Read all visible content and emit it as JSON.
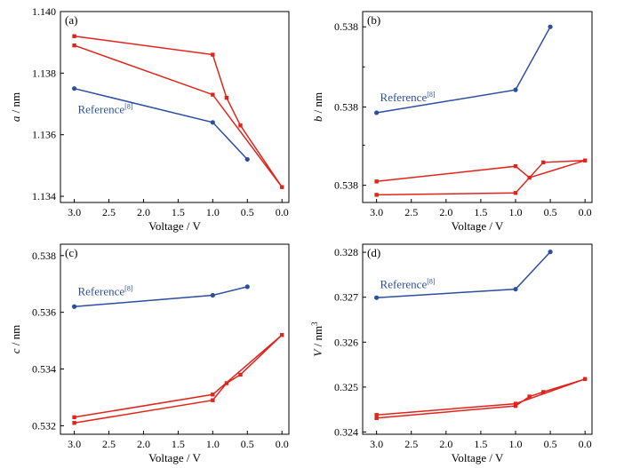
{
  "colors": {
    "red": "#e0241b",
    "blue": "#2a4f9f",
    "axis": "#000000"
  },
  "chart_data": [
    {
      "panel_label": "(a)",
      "type": "line",
      "xlabel": "Voltage / V",
      "ylabel": "a / nm",
      "ylabel_italic": "a",
      "ylabel_rest": " / nm",
      "xlim": [
        3.2,
        -0.1
      ],
      "ylim": [
        1.1338,
        1.14
      ],
      "xticks": [
        3.0,
        2.5,
        2.0,
        1.5,
        1.0,
        0.5,
        0.0
      ],
      "xtick_labels": [
        "3.0",
        "2.5",
        "2.0",
        "1.5",
        "1.0",
        "0.5",
        "0.0"
      ],
      "yticks": [
        1.134,
        1.136,
        1.138,
        1.14
      ],
      "ytick_labels": [
        "1.134",
        "1.136",
        "1.138",
        "1.140"
      ],
      "annotation": {
        "text": "Reference",
        "sup": "[8]",
        "at": [
          2.95,
          1.1367
        ]
      },
      "series": [
        {
          "color": "red",
          "marker": "square",
          "x": [
            3.0,
            1.0,
            0.8,
            0.6,
            0.0,
            1.0,
            3.0
          ],
          "y": [
            1.1392,
            1.1386,
            1.1372,
            1.1363,
            1.1343,
            1.1373,
            1.1389
          ]
        },
        {
          "color": "blue",
          "marker": "circle",
          "x": [
            3.0,
            1.0,
            0.5
          ],
          "y": [
            1.1375,
            1.1364,
            1.1352
          ]
        }
      ]
    },
    {
      "panel_label": "(b)",
      "type": "line",
      "xlabel": "Voltage / V",
      "ylabel": "b / nm",
      "ylabel_italic": "b",
      "ylabel_rest": " / nm",
      "xlim": [
        3.2,
        -0.1
      ],
      "ylim": [
        0.0,
        1.0
      ],
      "xticks": [
        3.0,
        2.5,
        2.0,
        1.5,
        1.0,
        0.5,
        0.0
      ],
      "xtick_labels": [
        "3.0",
        "2.5",
        "2.0",
        "1.5",
        "1.0",
        "0.5",
        "0.0"
      ],
      "yticks": [
        0.09,
        0.5,
        0.92
      ],
      "ytick_labels": [
        "0.538",
        "0.538",
        "0.538"
      ],
      "minor_yticks": [
        0.3,
        0.71
      ],
      "annotation": {
        "text": "Reference",
        "sup": "[8]",
        "at": [
          2.95,
          0.53
        ]
      },
      "series": [
        {
          "color": "red",
          "marker": "square",
          "x": [
            3.0,
            1.0,
            0.6,
            0.0,
            0.8,
            1.0,
            3.0
          ],
          "y": [
            0.04,
            0.05,
            0.21,
            0.22,
            0.13,
            0.19,
            0.11
          ]
        },
        {
          "color": "blue",
          "marker": "circle",
          "x": [
            3.0,
            1.0,
            0.5
          ],
          "y": [
            0.47,
            0.59,
            0.92
          ]
        }
      ]
    },
    {
      "panel_label": "(c)",
      "type": "line",
      "xlabel": "Voltage / V",
      "ylabel": "c / nm",
      "ylabel_italic": "c",
      "ylabel_rest": " / nm",
      "xlim": [
        3.2,
        -0.1
      ],
      "ylim": [
        0.5317,
        0.5384
      ],
      "xticks": [
        3.0,
        2.5,
        2.0,
        1.5,
        1.0,
        0.5,
        0.0
      ],
      "xtick_labels": [
        "3.0",
        "2.5",
        "2.0",
        "1.5",
        "1.0",
        "0.5",
        "0.0"
      ],
      "yticks": [
        0.532,
        0.534,
        0.536,
        0.538
      ],
      "ytick_labels": [
        "0.532",
        "0.534",
        "0.536",
        "0.538"
      ],
      "annotation": {
        "text": "Reference",
        "sup": "[8]",
        "at": [
          2.95,
          0.5366
        ]
      },
      "series": [
        {
          "color": "red",
          "marker": "square",
          "x": [
            3.0,
            1.0,
            0.8,
            0.6,
            0.0,
            1.0,
            3.0
          ],
          "y": [
            0.5321,
            0.5329,
            0.5335,
            0.5338,
            0.5352,
            0.5331,
            0.5323
          ]
        },
        {
          "color": "blue",
          "marker": "circle",
          "x": [
            3.0,
            1.0,
            0.5
          ],
          "y": [
            0.5362,
            0.5366,
            0.5369
          ]
        }
      ]
    },
    {
      "panel_label": "(d)",
      "type": "line",
      "xlabel": "Voltage / V",
      "ylabel": "V / nm3",
      "ylabel_italic": "V",
      "ylabel_rest": " / nm",
      "ylabel_sup": "3",
      "xlim": [
        3.2,
        -0.1
      ],
      "ylim": [
        0.32395,
        0.32818
      ],
      "xticks": [
        3.0,
        2.5,
        2.0,
        1.5,
        1.0,
        0.5,
        0.0
      ],
      "xtick_labels": [
        "3.0",
        "2.5",
        "2.0",
        "1.5",
        "1.0",
        "0.5",
        "0.0"
      ],
      "yticks": [
        0.324,
        0.325,
        0.326,
        0.327,
        0.328
      ],
      "ytick_labels": [
        "0.324",
        "0.325",
        "0.326",
        "0.327",
        "0.328"
      ],
      "annotation": {
        "text": "Reference",
        "sup": "[8]",
        "at": [
          2.95,
          0.3272
        ]
      },
      "series": [
        {
          "color": "red",
          "marker": "square",
          "x": [
            3.0,
            1.0,
            0.8,
            0.6,
            0.0,
            1.0,
            3.0
          ],
          "y": [
            0.32431,
            0.32458,
            0.32479,
            0.32489,
            0.32518,
            0.32463,
            0.32438
          ]
        },
        {
          "color": "blue",
          "marker": "circle",
          "x": [
            3.0,
            1.0,
            0.5
          ],
          "y": [
            0.32699,
            0.32718,
            0.32801
          ]
        }
      ]
    }
  ]
}
